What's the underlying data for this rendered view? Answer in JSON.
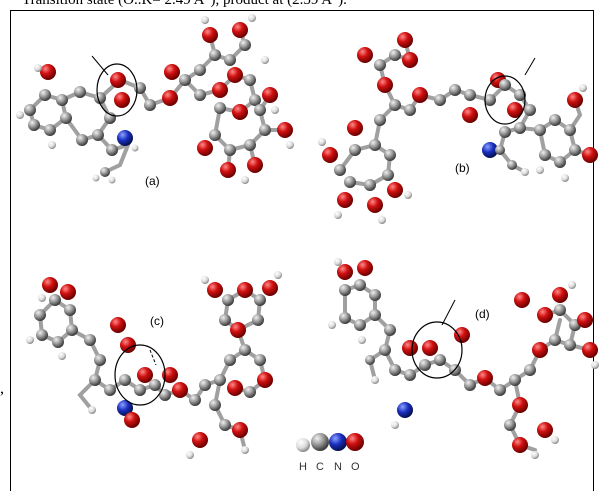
{
  "caption_top": "Transition state (O..K= 2.49 A°), product at (2.59 A°).",
  "side_mark": ",",
  "panels": [
    {
      "label": "(a)"
    },
    {
      "label": "(b)"
    },
    {
      "label": "(c)"
    },
    {
      "label": "(d)"
    }
  ],
  "legend": {
    "items": [
      {
        "symbol": "H",
        "color": "#e8e8e8"
      },
      {
        "symbol": "C",
        "color": "#9a9a9a"
      },
      {
        "symbol": "N",
        "color": "#1a2fc0"
      },
      {
        "symbol": "O",
        "color": "#d01010"
      }
    ]
  },
  "colors": {
    "hydrogen": "#e8e8e8",
    "carbon": "#9a9a9a",
    "nitrogen": "#1a2fc0",
    "oxygen": "#d01010",
    "bond": "#a0a0a0"
  }
}
